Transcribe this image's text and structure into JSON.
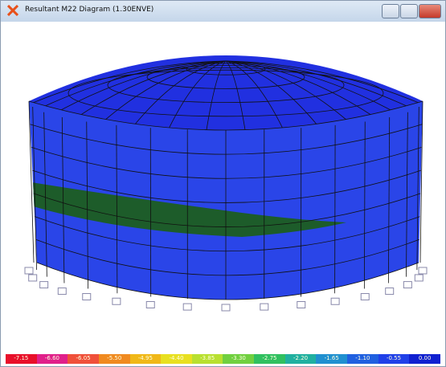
{
  "window": {
    "title": "Resultant M22 Diagram  (1.30ENVE)"
  },
  "legend": {
    "labels": [
      "-7.15",
      "-6.60",
      "-6.05",
      "-5.50",
      "-4.95",
      "-4.40",
      "-3.85",
      "-3.30",
      "-2.75",
      "-2.20",
      "-1.65",
      "-1.10",
      "-0.55",
      "0.00"
    ]
  }
}
